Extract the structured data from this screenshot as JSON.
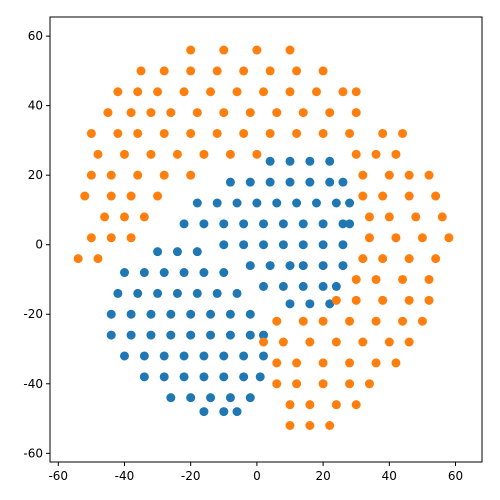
{
  "chart_data": {
    "type": "scatter",
    "xlim": [
      -62.5,
      68
    ],
    "ylim": [
      -62.5,
      65.5
    ],
    "xticks": [
      -60,
      -40,
      -20,
      0,
      20,
      40,
      60
    ],
    "yticks": [
      -60,
      -40,
      -20,
      0,
      20,
      40,
      60
    ],
    "series": [
      {
        "color": "#1f77b4",
        "x": [
          4,
          10,
          16,
          22,
          -8,
          -2,
          4,
          10,
          16,
          22,
          26,
          -18,
          -12,
          -6,
          0,
          6,
          12,
          18,
          24,
          28,
          -22,
          -16,
          -10,
          -4,
          2,
          8,
          14,
          20,
          26,
          28,
          -10,
          -4,
          2,
          8,
          14,
          20,
          26,
          -2,
          4,
          10,
          14,
          20,
          26,
          2,
          8,
          14,
          20,
          24,
          10,
          16,
          22,
          -30,
          -24,
          -18,
          -40,
          -34,
          -28,
          -22,
          -16,
          -10,
          -42,
          -36,
          -30,
          -24,
          -18,
          -12,
          -6,
          -44,
          -38,
          -32,
          -26,
          -20,
          -14,
          -8,
          -2,
          -44,
          -38,
          -32,
          -26,
          -20,
          -14,
          -8,
          -2,
          2,
          -40,
          -34,
          -28,
          -22,
          -16,
          -10,
          -4,
          2,
          -34,
          -28,
          -22,
          -16,
          -10,
          -4,
          1,
          -26,
          -20,
          -14,
          -8,
          -2,
          -16,
          -10,
          -6
        ],
        "y": [
          24,
          24,
          24,
          24,
          18,
          18,
          18,
          18,
          18,
          18,
          18,
          12,
          12,
          12,
          12,
          12,
          12,
          12,
          12,
          12,
          6,
          6,
          6,
          6,
          6,
          6,
          6,
          6,
          6,
          6,
          0,
          0,
          0,
          0,
          0,
          0,
          0,
          -6,
          -6,
          -6,
          -6,
          -6,
          -6,
          -12,
          -12,
          -12,
          -12,
          -12,
          -17,
          -17,
          -17,
          -2,
          -2,
          -2,
          -8,
          -8,
          -8,
          -8,
          -8,
          -8,
          -14,
          -14,
          -14,
          -14,
          -14,
          -14,
          -14,
          -20,
          -20,
          -20,
          -20,
          -20,
          -20,
          -20,
          -20,
          -26,
          -26,
          -26,
          -26,
          -26,
          -26,
          -26,
          -26,
          -26,
          -32,
          -32,
          -32,
          -32,
          -32,
          -32,
          -32,
          -32,
          -38,
          -38,
          -38,
          -38,
          -38,
          -38,
          -38,
          -44,
          -44,
          -44,
          -44,
          -44,
          -48,
          -48,
          -48
        ]
      },
      {
        "color": "#ff7f0e",
        "x": [
          -20,
          -10,
          0,
          10,
          -35,
          -28,
          -20,
          -12,
          -4,
          4,
          12,
          20,
          -42,
          -36,
          -30,
          -22,
          -14,
          -6,
          2,
          10,
          18,
          26,
          30,
          -45,
          -38,
          -32,
          -26,
          -18,
          -10,
          -2,
          6,
          14,
          22,
          30,
          -50,
          -42,
          -36,
          -28,
          -20,
          -12,
          -4,
          4,
          12,
          20,
          28,
          38,
          44,
          -48,
          -40,
          -32,
          -24,
          -16,
          -8,
          0,
          30,
          36,
          42,
          -50,
          -44,
          -36,
          -28,
          -20,
          32,
          40,
          46,
          52,
          -52,
          -44,
          -38,
          -30,
          32,
          38,
          46,
          54,
          -46,
          -40,
          -34,
          34,
          40,
          48,
          56,
          -50,
          -44,
          -38,
          34,
          42,
          50,
          58,
          -54,
          -48,
          32,
          38,
          46,
          54,
          30,
          36,
          44,
          52,
          24,
          30,
          38,
          46,
          52,
          6,
          14,
          20,
          28,
          36,
          44,
          50,
          2,
          8,
          16,
          24,
          32,
          40,
          46,
          6,
          12,
          20,
          28,
          36,
          42,
          6,
          12,
          20,
          28,
          34,
          10,
          16,
          24,
          30,
          10,
          16,
          22
        ],
        "y": [
          56,
          56,
          56,
          56,
          50,
          50,
          50,
          50,
          50,
          50,
          50,
          50,
          44,
          44,
          44,
          44,
          44,
          44,
          44,
          44,
          44,
          44,
          44,
          38,
          38,
          38,
          38,
          38,
          38,
          38,
          38,
          38,
          38,
          38,
          32,
          32,
          32,
          32,
          32,
          32,
          32,
          32,
          32,
          32,
          32,
          32,
          32,
          26,
          26,
          26,
          26,
          26,
          26,
          26,
          26,
          26,
          26,
          20,
          20,
          20,
          20,
          20,
          20,
          20,
          20,
          20,
          14,
          14,
          14,
          14,
          14,
          14,
          14,
          14,
          8,
          8,
          8,
          8,
          8,
          8,
          8,
          2,
          2,
          2,
          2,
          2,
          2,
          2,
          -4,
          -4,
          -4,
          -4,
          -4,
          -4,
          -10,
          -10,
          -10,
          -10,
          -16,
          -16,
          -16,
          -16,
          -16,
          -22,
          -22,
          -22,
          -22,
          -22,
          -22,
          -22,
          -28,
          -28,
          -28,
          -28,
          -28,
          -28,
          -28,
          -34,
          -34,
          -34,
          -34,
          -34,
          -34,
          -40,
          -40,
          -40,
          -40,
          -40,
          -46,
          -46,
          -46,
          -46,
          -52,
          -52,
          -52
        ]
      }
    ]
  }
}
